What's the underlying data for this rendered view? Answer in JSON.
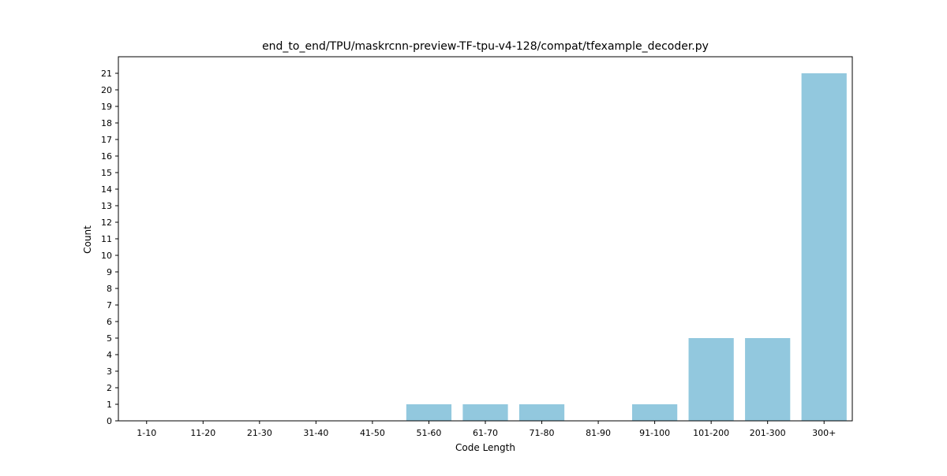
{
  "chart_data": {
    "type": "bar",
    "title": "end_to_end/TPU/maskrcnn-preview-TF-tpu-v4-128/compat/tfexample_decoder.py",
    "xlabel": "Code Length",
    "ylabel": "Count",
    "categories": [
      "1-10",
      "11-20",
      "21-30",
      "31-40",
      "41-50",
      "51-60",
      "61-70",
      "71-80",
      "81-90",
      "91-100",
      "101-200",
      "201-300",
      "300+"
    ],
    "values": [
      0,
      0,
      0,
      0,
      0,
      1,
      1,
      1,
      0,
      1,
      5,
      5,
      21
    ],
    "ylim": [
      0,
      22
    ],
    "yticks": [
      0,
      1,
      2,
      3,
      4,
      5,
      6,
      7,
      8,
      9,
      10,
      11,
      12,
      13,
      14,
      15,
      16,
      17,
      18,
      19,
      20,
      21
    ],
    "bar_color": "#92c8de",
    "grid": false,
    "legend": "none"
  }
}
